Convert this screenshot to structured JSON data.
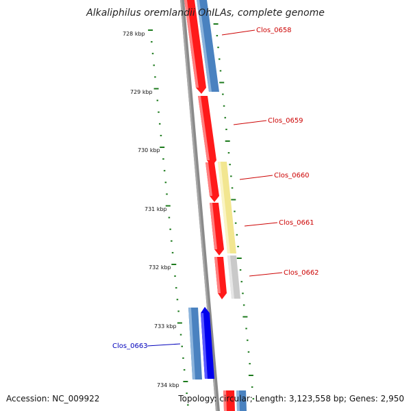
{
  "title": "Alkaliphilus oremlandii OhILAs, complete genome",
  "footer": {
    "accession": "Accession: NC_009922",
    "stats": "Topology: circular; Length: 3,123,558 bp; Genes: 2,950"
  },
  "ticks": [
    "728 kbp",
    "729 kbp",
    "730 kbp",
    "731 kbp",
    "732 kbp",
    "733 kbp",
    "734 kbp"
  ],
  "colors": {
    "backbone": "#7a7a7a",
    "tick_marks": "#1c7a1c",
    "label_forward": "#cc0000",
    "label_reverse": "#0000bb",
    "cds_red": "#ff1a1a",
    "steelblue": "#4a82c0",
    "yellow": "#f2e690",
    "grey": "#c9c9c9",
    "blue": "#0000ee"
  },
  "genes": [
    {
      "label": "Clos_0658",
      "strand": "forward",
      "color": "red",
      "paired_feature": "steelblue"
    },
    {
      "label": "Clos_0659",
      "strand": "forward",
      "color": "red"
    },
    {
      "label": "Clos_0660",
      "strand": "forward",
      "color": "red",
      "paired_feature": "yellow"
    },
    {
      "label": "Clos_0661",
      "strand": "forward",
      "color": "red",
      "paired_feature": "yellow"
    },
    {
      "label": "Clos_0662",
      "strand": "forward",
      "color": "red",
      "paired_feature": "grey"
    },
    {
      "label": "Clos_0663",
      "strand": "reverse",
      "color": "blue",
      "paired_feature": "steelblue"
    }
  ]
}
